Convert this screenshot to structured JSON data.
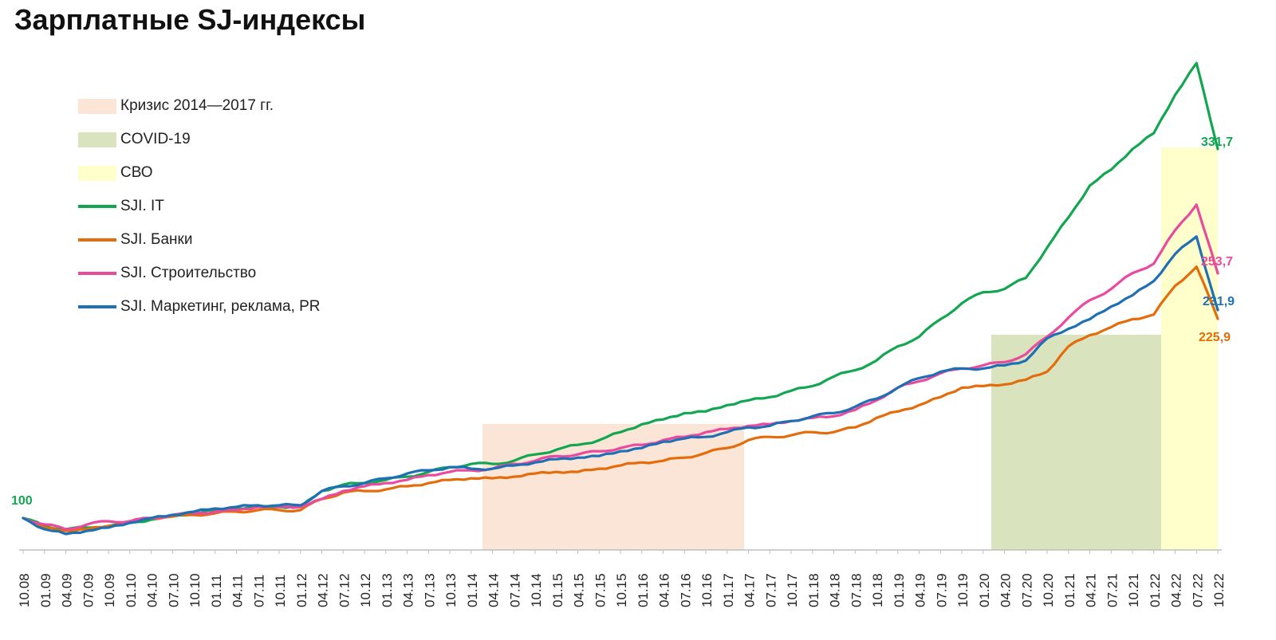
{
  "title": "Зарплатные SJ-индексы",
  "legend": [
    {
      "label": "Кризис 2014—2017 гг.",
      "kind": "band",
      "color": "#fbe5d6"
    },
    {
      "label": "COVID-19",
      "kind": "band",
      "color": "#d9e3bd"
    },
    {
      "label": "СВО",
      "kind": "band",
      "color": "#ffffcc"
    },
    {
      "label": "SJI. IT",
      "kind": "line",
      "color": "#13a650"
    },
    {
      "label": "SJI. Банки",
      "kind": "line",
      "color": "#e46c0a"
    },
    {
      "label": "SJI. Строительство",
      "kind": "line",
      "color": "#ea4a9e"
    },
    {
      "label": "SJI. Маркетинг, реклама, PR",
      "kind": "line",
      "color": "#1f6fb4"
    }
  ],
  "chart_data": {
    "type": "line",
    "categories": [
      "10.08",
      "01.09",
      "04.09",
      "07.09",
      "10.09",
      "01.10",
      "04.10",
      "07.10",
      "10.10",
      "01.11",
      "04.11",
      "07.11",
      "10.11",
      "01.12",
      "04.12",
      "07.12",
      "10.12",
      "01.13",
      "04.13",
      "07.13",
      "10.13",
      "01.14",
      "04.14",
      "07.14",
      "10.14",
      "01.15",
      "04.15",
      "07.15",
      "10.15",
      "01.16",
      "04.16",
      "07.16",
      "10.16",
      "01.17",
      "04.17",
      "07.17",
      "10.17",
      "01.18",
      "04.18",
      "07.18",
      "10.18",
      "01.19",
      "04.19",
      "07.19",
      "10.19",
      "01.20",
      "04.20",
      "07.20",
      "10.20",
      "01.21",
      "04.21",
      "07.21",
      "10.21",
      "01.22",
      "04.22",
      "07.22",
      "10.22"
    ],
    "bands": [
      {
        "label": "Кризис 2014—2017 гг.",
        "from": "01.14",
        "to": "04.17",
        "color": "#fbe5d6"
      },
      {
        "label": "COVID-19",
        "from": "01.20",
        "to": "01.22",
        "color": "#d9e3bd"
      },
      {
        "label": "СВО",
        "from": "01.22",
        "to": "10.22",
        "color": "#ffffcc"
      }
    ],
    "series": [
      {
        "name": "SJI. IT",
        "color": "#13a650",
        "end_label": "331,7",
        "values": [
          100,
          95,
          93,
          94,
          95,
          97,
          99,
          101,
          103,
          105,
          106,
          107,
          107,
          107,
          117,
          121,
          122,
          124,
          126,
          129,
          132,
          134,
          134,
          136,
          140,
          143,
          146,
          149,
          154,
          159,
          162,
          166,
          167,
          171,
          174,
          176,
          180,
          183,
          189,
          193,
          199,
          208,
          214,
          225,
          235,
          242,
          244,
          251,
          270,
          289,
          309,
          319,
          332,
          342,
          366,
          386,
          332
        ]
      },
      {
        "name": "SJI. Банки",
        "color": "#e46c0a",
        "end_label": "225,9",
        "values": [
          100,
          94,
          92,
          93,
          95,
          98,
          100,
          101,
          102,
          103,
          104,
          105,
          105,
          105,
          112,
          116,
          117,
          118,
          120,
          122,
          124,
          125,
          125,
          126,
          128,
          129,
          129,
          131,
          133,
          135,
          136,
          138,
          141,
          144,
          149,
          151,
          152,
          154,
          154,
          157,
          163,
          167,
          171,
          176,
          182,
          183,
          184,
          187,
          192,
          208,
          215,
          220,
          225,
          228,
          246,
          258,
          225.9
        ]
      },
      {
        "name": "SJI. Строительство",
        "color": "#ea4a9e",
        "end_label": "253,7",
        "values": [
          100,
          96,
          93,
          96,
          98,
          98,
          100,
          102,
          103,
          104,
          105,
          107,
          107,
          107,
          112,
          117,
          120,
          122,
          124,
          127,
          129,
          130,
          131,
          134,
          136,
          139,
          140,
          142,
          144,
          146,
          149,
          151,
          154,
          156,
          158,
          159,
          161,
          163,
          164,
          168,
          174,
          182,
          186,
          191,
          194,
          196,
          198,
          203,
          214,
          226,
          237,
          244,
          254,
          260,
          281,
          297,
          253.7
        ]
      },
      {
        "name": "SJI. Маркетинг, реклама, PR",
        "color": "#1f6fb4",
        "end_label": "231,9",
        "values": [
          100,
          93,
          90,
          92,
          94,
          97,
          100,
          102,
          104,
          106,
          107,
          108,
          108,
          108,
          117,
          120,
          122,
          125,
          128,
          130,
          132,
          131,
          131,
          133,
          135,
          137,
          138,
          139,
          142,
          144,
          148,
          150,
          151,
          154,
          157,
          158,
          161,
          164,
          166,
          170,
          175,
          182,
          188,
          192,
          194,
          194,
          196,
          199,
          213,
          219,
          225,
          233,
          240,
          249,
          266,
          277,
          231.9
        ]
      }
    ],
    "start_label": "100",
    "xlabel": "",
    "ylabel": ""
  }
}
